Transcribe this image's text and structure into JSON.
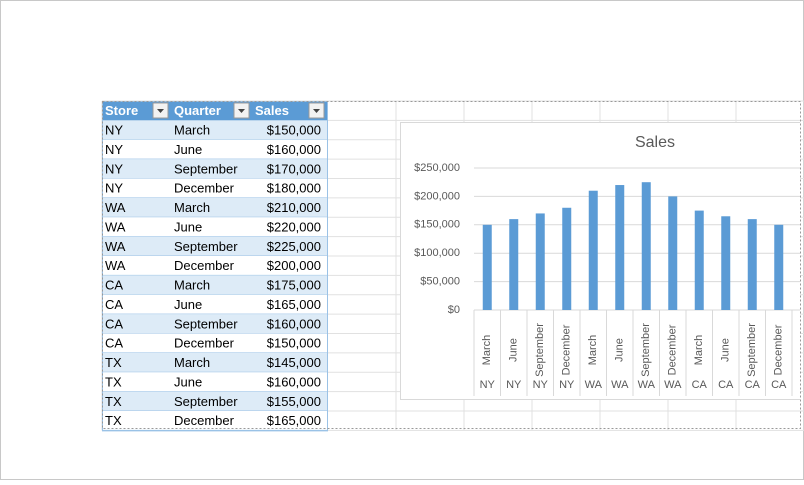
{
  "table": {
    "header": [
      "Store",
      "Quarter",
      "Sales"
    ],
    "rows": [
      [
        "NY",
        "March",
        "$150,000"
      ],
      [
        "NY",
        "June",
        "$160,000"
      ],
      [
        "NY",
        "September",
        "$170,000"
      ],
      [
        "NY",
        "December",
        "$180,000"
      ],
      [
        "WA",
        "March",
        "$210,000"
      ],
      [
        "WA",
        "June",
        "$220,000"
      ],
      [
        "WA",
        "September",
        "$225,000"
      ],
      [
        "WA",
        "December",
        "$200,000"
      ],
      [
        "CA",
        "March",
        "$175,000"
      ],
      [
        "CA",
        "June",
        "$165,000"
      ],
      [
        "CA",
        "September",
        "$160,000"
      ],
      [
        "CA",
        "December",
        "$150,000"
      ],
      [
        "TX",
        "March",
        "$145,000"
      ],
      [
        "TX",
        "June",
        "$160,000"
      ],
      [
        "TX",
        "September",
        "$155,000"
      ],
      [
        "TX",
        "December",
        "$165,000"
      ]
    ]
  },
  "chart_data": {
    "type": "bar",
    "title": "Sales",
    "categories": [
      "March",
      "June",
      "September",
      "December",
      "March",
      "June",
      "September",
      "December",
      "March",
      "June",
      "September",
      "December"
    ],
    "groups": [
      "NY",
      "NY",
      "NY",
      "NY",
      "WA",
      "WA",
      "WA",
      "WA",
      "CA",
      "CA",
      "CA",
      "CA"
    ],
    "values": [
      150000,
      160000,
      170000,
      180000,
      210000,
      220000,
      225000,
      200000,
      175000,
      165000,
      160000,
      150000
    ],
    "color": "#5b9bd5",
    "ylim": [
      0,
      250000
    ],
    "yticks": [
      {
        "value": 0,
        "label": "$0"
      },
      {
        "value": 50000,
        "label": "$50,000"
      },
      {
        "value": 100000,
        "label": "$100,000"
      },
      {
        "value": 150000,
        "label": "$150,000"
      },
      {
        "value": 200000,
        "label": "$200,000"
      },
      {
        "value": 250000,
        "label": "$250,000"
      }
    ],
    "grid": true
  }
}
